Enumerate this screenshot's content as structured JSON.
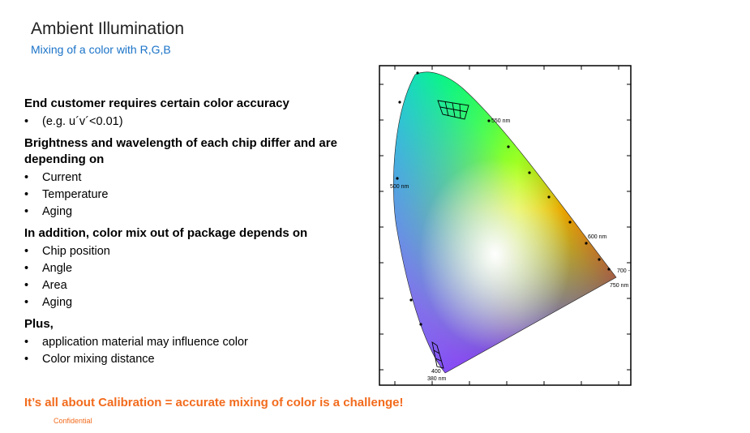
{
  "header": {
    "title": "Ambient Illumination",
    "subtitle": "Mixing of a color with R,G,B"
  },
  "sections": [
    {
      "heading": "End customer requires certain color accuracy",
      "items": [
        "(e.g. u´v´<0.01)"
      ]
    },
    {
      "heading": "Brightness and wavelength of each chip differ and are depending on",
      "items": [
        "Current",
        "Temperature",
        "Aging"
      ]
    },
    {
      "heading": "In addition, color mix out of package depends on",
      "items": [
        "Chip position",
        "Angle",
        "Area",
        "Aging"
      ]
    },
    {
      "heading": "Plus,",
      "items": [
        "application material may influence color",
        "Color mixing distance"
      ]
    }
  ],
  "bullet_char": "•",
  "footer": {
    "tagline": "It’s all about Calibration  = accurate mixing of color is a challenge!",
    "confidential": "Confidential"
  },
  "diagram": {
    "labels": {
      "nm550": "550 nm",
      "nm500": "500 nm",
      "nm600": "600 nm",
      "nm700": "700 -",
      "nm750": "750 nm",
      "nm400": "400",
      "nm380": "380 nm"
    }
  }
}
